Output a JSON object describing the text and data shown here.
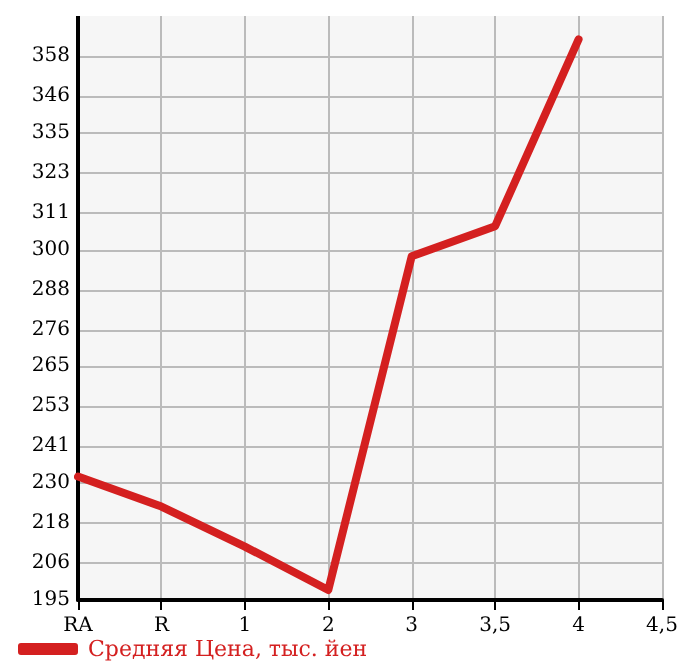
{
  "chart_data": {
    "type": "line",
    "categories": [
      "RA",
      "R",
      "1",
      "2",
      "3",
      "3,5",
      "4",
      "4,5"
    ],
    "series": [
      {
        "name": "Средняя Цена, тыс. йен",
        "color": "#d42020",
        "values": [
          232,
          223,
          211,
          198,
          298,
          307,
          363,
          null
        ]
      }
    ],
    "ylim": [
      195,
      370
    ],
    "yticks": [
      195,
      206,
      218,
      230,
      241,
      253,
      265,
      276,
      288,
      300,
      311,
      323,
      335,
      346,
      358
    ],
    "grid": true,
    "legend": "bottom left",
    "marker": "none",
    "line_style": "solid"
  }
}
